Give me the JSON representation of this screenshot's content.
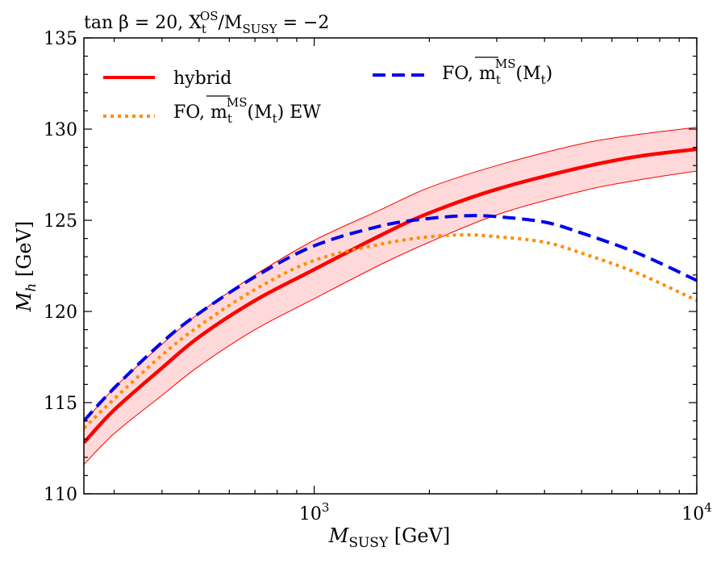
{
  "chart_data": {
    "type": "line",
    "title": "tan β = 20, X_t^OS/M_SUSY = −2",
    "xlabel": "M_SUSY [GeV]",
    "ylabel": "M_h [GeV]",
    "xscale": "log",
    "xlim": [
      250,
      10000
    ],
    "ylim": [
      110,
      135
    ],
    "y_ticks": [
      "110",
      "115",
      "120",
      "125",
      "130",
      "135"
    ],
    "x_tick_labels": [
      {
        "value": 1000,
        "base": "10",
        "exp": "3"
      },
      {
        "value": 10000,
        "base": "10",
        "exp": "4"
      }
    ],
    "legend_position": "top",
    "series": [
      {
        "name": "hybrid",
        "style": "solid",
        "color": "#ff0000",
        "x": [
          250,
          300,
          400,
          500,
          700,
          1000,
          1500,
          2000,
          3000,
          5000,
          7000,
          10000
        ],
        "y": [
          112.8,
          114.6,
          116.9,
          118.6,
          120.6,
          122.3,
          124.2,
          125.4,
          126.7,
          127.9,
          128.5,
          128.9
        ],
        "band_lower": [
          111.6,
          113.3,
          115.4,
          117.0,
          119.0,
          120.7,
          122.6,
          123.8,
          125.3,
          126.6,
          127.2,
          127.7
        ],
        "band_upper": [
          113.9,
          115.8,
          118.2,
          119.9,
          122.0,
          123.9,
          125.6,
          126.8,
          128.0,
          129.2,
          129.7,
          130.1
        ]
      },
      {
        "name": "FO, m_t^MS(M_t)",
        "style": "dashed",
        "color": "#0000ee",
        "x": [
          250,
          300,
          400,
          500,
          700,
          1000,
          1500,
          2000,
          2500,
          3000,
          4000,
          5000,
          7000,
          10000
        ],
        "y": [
          114.0,
          115.8,
          118.3,
          119.9,
          121.9,
          123.6,
          124.7,
          125.1,
          125.25,
          125.2,
          124.9,
          124.3,
          123.2,
          121.7
        ]
      },
      {
        "name": "FO, m_t^MS(M_t) EW",
        "style": "dotted",
        "color": "#ff8c00",
        "x": [
          250,
          300,
          400,
          500,
          700,
          1000,
          1500,
          2000,
          2500,
          3000,
          4000,
          5000,
          7000,
          10000
        ],
        "y": [
          113.6,
          115.2,
          117.6,
          119.2,
          121.2,
          122.8,
          123.7,
          124.1,
          124.2,
          124.1,
          123.8,
          123.2,
          122.1,
          120.6
        ]
      }
    ]
  },
  "labels": {
    "title_pre": "tan β = 20, X",
    "title_sub": "t",
    "title_sup": "OS",
    "title_mid": "/M",
    "title_sub2": "SUSY",
    "title_post": " = −2",
    "ylabel_main": "M",
    "ylabel_sub": "h",
    "ylabel_unit": " [GeV]",
    "xlabel_main": "M",
    "xlabel_sub": "SUSY",
    "xlabel_unit": " [GeV]",
    "legend_hybrid": "hybrid",
    "legend_fo_pre": "FO, m",
    "legend_fo_sub": "t",
    "legend_fo_sup": "MS",
    "legend_fo_post": "(M",
    "legend_fo_sub2": "t",
    "legend_fo_end": ")",
    "legend_ew_end": ") EW"
  }
}
